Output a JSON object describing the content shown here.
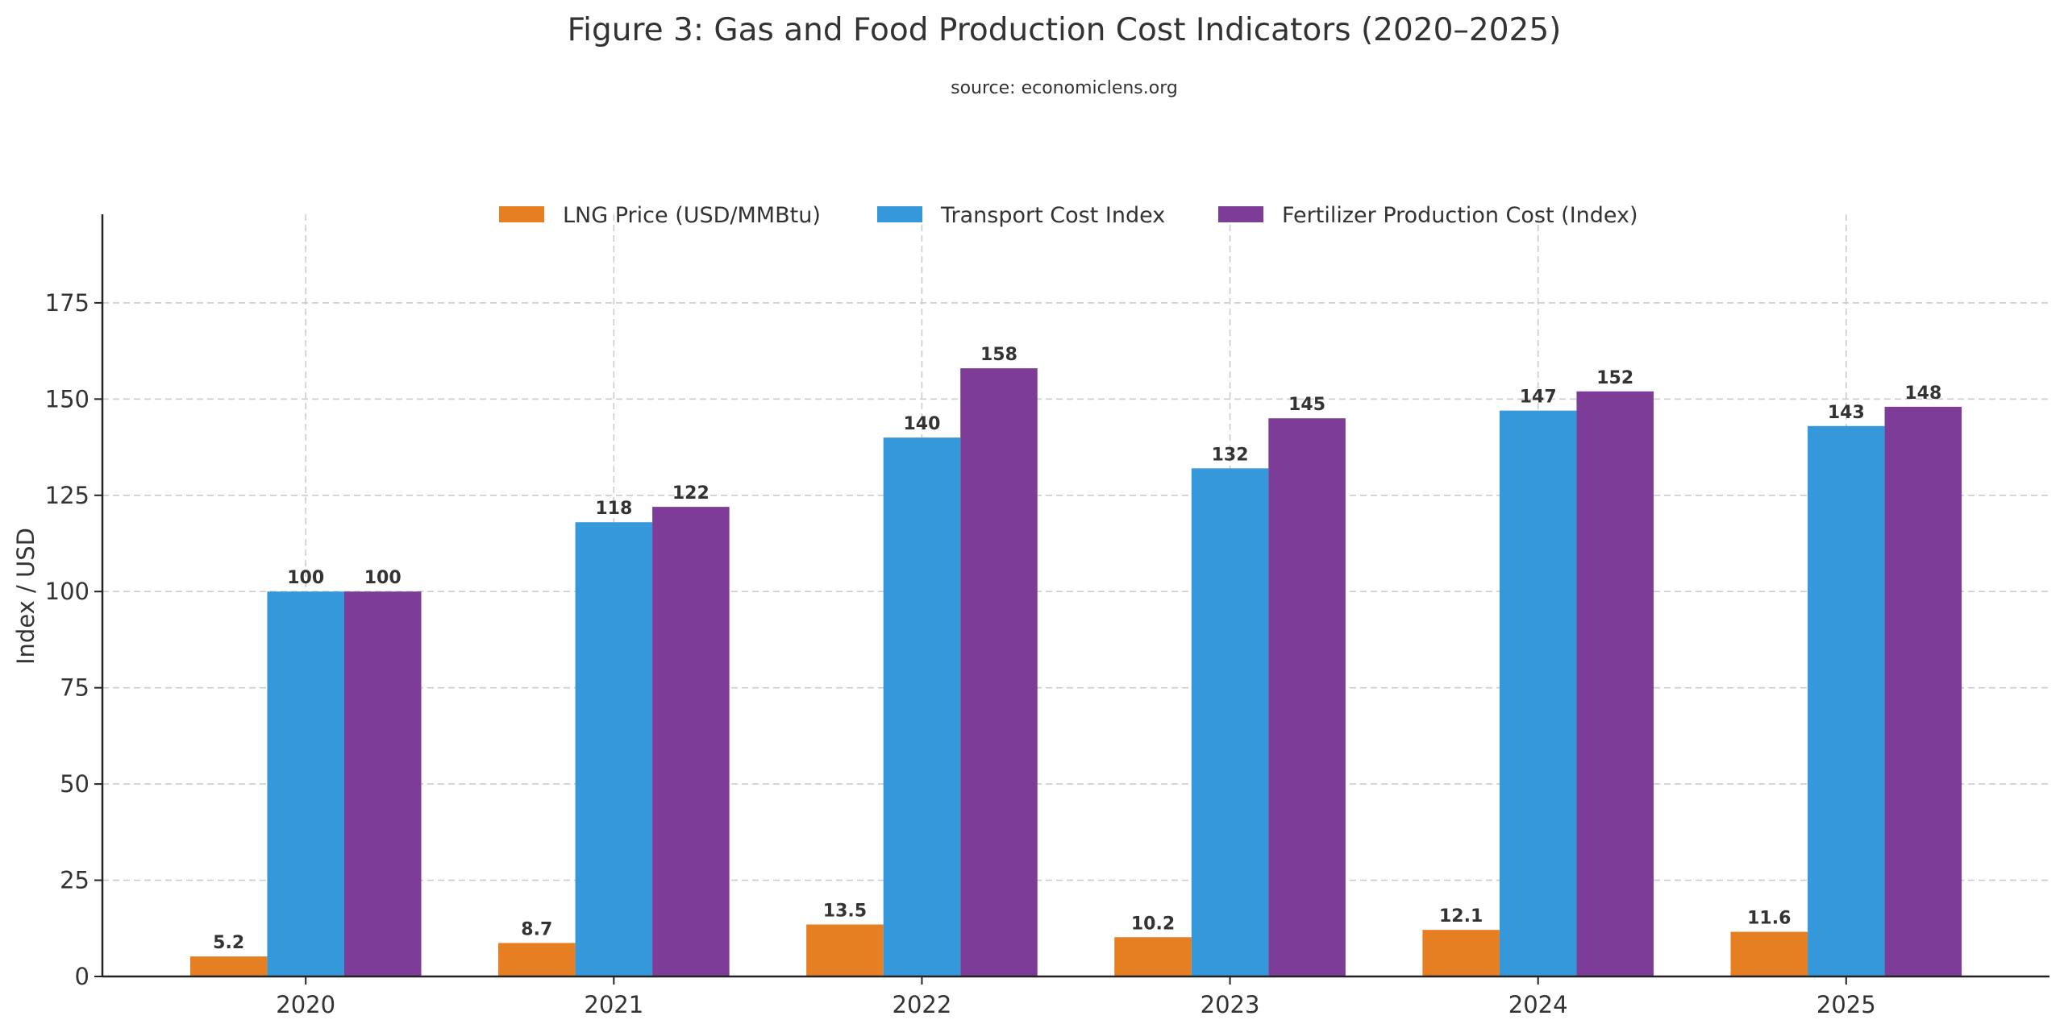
{
  "chart_data": {
    "type": "bar",
    "title": "Figure 3: Gas and Food Production Cost Indicators (2020–2025)",
    "subtitle": "source: economiclens.org",
    "xlabel": "",
    "ylabel": "Index / USD",
    "categories": [
      "2020",
      "2021",
      "2022",
      "2023",
      "2024",
      "2025"
    ],
    "series": [
      {
        "name": "LNG Price (USD/MMBtu)",
        "color": "#E67E22",
        "values": [
          5.2,
          8.7,
          13.5,
          10.2,
          12.1,
          11.6
        ],
        "labels": [
          "5.2",
          "8.7",
          "13.5",
          "10.2",
          "12.1",
          "11.6"
        ]
      },
      {
        "name": "Transport Cost Index",
        "color": "#3498DB",
        "values": [
          100,
          118,
          140,
          132,
          147,
          143
        ],
        "labels": [
          "100",
          "118",
          "140",
          "132",
          "147",
          "143"
        ]
      },
      {
        "name": "Fertilizer Production Cost (Index)",
        "color": "#7D3C98",
        "values": [
          100,
          122,
          158,
          145,
          152,
          148
        ],
        "labels": [
          "100",
          "122",
          "158",
          "145",
          "152",
          "148"
        ]
      }
    ],
    "ylim": [
      0,
      198
    ],
    "yticks": [
      "0",
      "25",
      "50",
      "75",
      "100",
      "125",
      "150",
      "175"
    ],
    "grid": true,
    "legend": "top-center"
  }
}
